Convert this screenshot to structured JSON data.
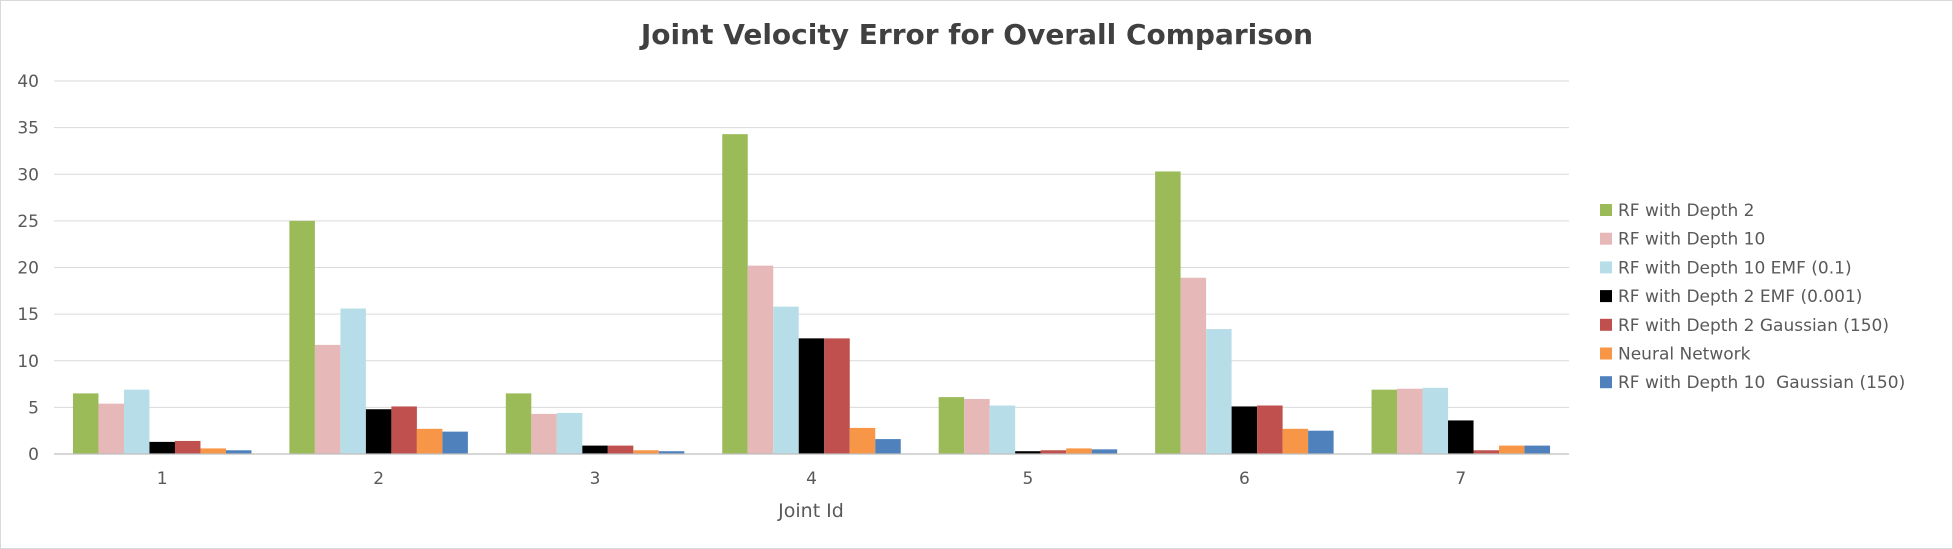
{
  "chart_data": {
    "type": "bar",
    "title": "Joint Velocity Error for Overall Comparison",
    "xlabel": "Joint Id",
    "ylabel": "",
    "categories": [
      "1",
      "2",
      "3",
      "4",
      "5",
      "6",
      "7"
    ],
    "ylim": [
      0,
      40
    ],
    "yticks": [
      0,
      5,
      10,
      15,
      20,
      25,
      30,
      35,
      40
    ],
    "grid": true,
    "legend_position": "right",
    "series": [
      {
        "name": "RF with Depth 2",
        "color": "#9bbb59",
        "values": [
          6.5,
          25.0,
          6.5,
          34.3,
          6.1,
          30.3,
          6.9
        ]
      },
      {
        "name": "RF with Depth 10",
        "color": "#e6b9b8",
        "values": [
          5.4,
          11.7,
          4.3,
          20.2,
          5.9,
          18.9,
          7.0
        ]
      },
      {
        "name": "RF with Depth 10 EMF (0.1)",
        "color": "#b7dee8",
        "values": [
          6.9,
          15.6,
          4.4,
          15.8,
          5.2,
          13.4,
          7.1
        ]
      },
      {
        "name": "RF with Depth 2 EMF (0.001)",
        "color": "#000000",
        "values": [
          1.3,
          4.8,
          0.9,
          12.4,
          0.3,
          5.1,
          3.6
        ]
      },
      {
        "name": "RF with Depth 2 Gaussian (150)",
        "color": "#c0504d",
        "values": [
          1.4,
          5.1,
          0.9,
          12.4,
          0.4,
          5.2,
          0.4
        ]
      },
      {
        "name": "Neural Network",
        "color": "#f79646",
        "values": [
          0.6,
          2.7,
          0.4,
          2.8,
          0.6,
          2.7,
          0.9
        ]
      },
      {
        "name": "RF with Depth 10  Gaussian (150)",
        "color": "#4f81bd",
        "values": [
          0.4,
          2.4,
          0.3,
          1.6,
          0.5,
          2.5,
          0.9
        ]
      }
    ]
  }
}
